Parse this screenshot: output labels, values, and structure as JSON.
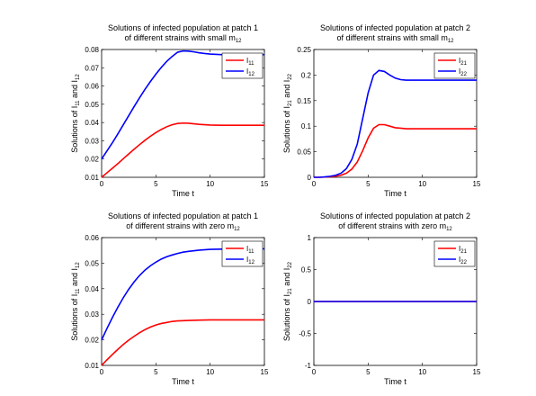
{
  "chart_data": [
    {
      "type": "line",
      "title": [
        {
          "parts": [
            {
              "t": "Solutions of infected population at patch 1"
            }
          ]
        },
        {
          "parts": [
            {
              "t": "of different strains with small m"
            },
            {
              "t": "12",
              "sub": true
            }
          ]
        }
      ],
      "xlabel": "Time t",
      "ylabel": [
        {
          "t": "Solutions of I"
        },
        {
          "t": "11",
          "sub": true
        },
        {
          "t": " and I"
        },
        {
          "t": "12",
          "sub": true
        }
      ],
      "xlim": [
        0,
        15
      ],
      "ylim": [
        0.01,
        0.08
      ],
      "xticks": [
        "0",
        "5",
        "10",
        "15"
      ],
      "yticks": [
        "0.01",
        "0.02",
        "0.03",
        "0.04",
        "0.05",
        "0.06",
        "0.07",
        "0.08"
      ],
      "legend": "top-right",
      "series": [
        {
          "name": [
            {
              "t": "I"
            },
            {
              "t": "11",
              "sub": true
            }
          ],
          "color": "#ff0000",
          "x": [
            0,
            0.5,
            1,
            1.5,
            2,
            2.5,
            3,
            3.5,
            4,
            4.5,
            5,
            5.5,
            6,
            6.5,
            7,
            7.5,
            8,
            8.5,
            9,
            9.5,
            10,
            11,
            12,
            13,
            14,
            15
          ],
          "y": [
            0.01,
            0.0125,
            0.015,
            0.0175,
            0.0202,
            0.0228,
            0.0254,
            0.0279,
            0.0303,
            0.0325,
            0.0345,
            0.0362,
            0.0377,
            0.0388,
            0.0395,
            0.0397,
            0.0396,
            0.0393,
            0.039,
            0.0388,
            0.0386,
            0.0385,
            0.0385,
            0.0385,
            0.0385,
            0.0385
          ]
        },
        {
          "name": [
            {
              "t": "I"
            },
            {
              "t": "12",
              "sub": true
            }
          ],
          "color": "#0000ff",
          "x": [
            0,
            0.5,
            1,
            1.5,
            2,
            2.5,
            3,
            3.5,
            4,
            4.5,
            5,
            5.5,
            6,
            6.5,
            7,
            7.5,
            8,
            8.5,
            9,
            9.5,
            10,
            11,
            12,
            13,
            14,
            15
          ],
          "y": [
            0.02,
            0.0245,
            0.029,
            0.0338,
            0.0388,
            0.0438,
            0.0488,
            0.0536,
            0.0582,
            0.0625,
            0.0665,
            0.0702,
            0.0735,
            0.0762,
            0.0785,
            0.0792,
            0.0791,
            0.0787,
            0.0782,
            0.0778,
            0.0775,
            0.0772,
            0.0772,
            0.0772,
            0.0772,
            0.0772
          ]
        }
      ]
    },
    {
      "type": "line",
      "title": [
        {
          "parts": [
            {
              "t": "Solutions of infected population at patch 2"
            }
          ]
        },
        {
          "parts": [
            {
              "t": "of different strains with small m"
            },
            {
              "t": "12",
              "sub": true
            }
          ]
        }
      ],
      "xlabel": "Time t",
      "ylabel": [
        {
          "t": "Solutions of I"
        },
        {
          "t": "21",
          "sub": true
        },
        {
          "t": " and I"
        },
        {
          "t": "22",
          "sub": true
        }
      ],
      "xlim": [
        0,
        15
      ],
      "ylim": [
        0,
        0.25
      ],
      "xticks": [
        "0",
        "5",
        "10",
        "15"
      ],
      "yticks": [
        "0",
        "0.05",
        "0.1",
        "0.15",
        "0.2",
        "0.25"
      ],
      "legend": "top-right",
      "series": [
        {
          "name": [
            {
              "t": "I"
            },
            {
              "t": "21",
              "sub": true
            }
          ],
          "color": "#ff0000",
          "x": [
            0,
            0.5,
            1,
            1.5,
            2,
            2.5,
            3,
            3.5,
            4,
            4.5,
            5,
            5.5,
            6,
            6.5,
            7,
            7.5,
            8,
            8.5,
            9,
            10,
            11,
            12,
            13,
            14,
            15
          ],
          "y": [
            0,
            0,
            0.0005,
            0.001,
            0.002,
            0.004,
            0.008,
            0.016,
            0.03,
            0.052,
            0.077,
            0.096,
            0.103,
            0.103,
            0.1,
            0.097,
            0.096,
            0.095,
            0.095,
            0.095,
            0.095,
            0.095,
            0.095,
            0.095,
            0.095
          ]
        },
        {
          "name": [
            {
              "t": "I"
            },
            {
              "t": "22",
              "sub": true
            }
          ],
          "color": "#0000ff",
          "x": [
            0,
            0.5,
            1,
            1.5,
            2,
            2.5,
            3,
            3.5,
            4,
            4.5,
            5,
            5.5,
            6,
            6.5,
            7,
            7.5,
            8,
            8.5,
            9,
            10,
            11,
            12,
            13,
            14,
            15
          ],
          "y": [
            0,
            0,
            0.0008,
            0.002,
            0.004,
            0.008,
            0.017,
            0.035,
            0.065,
            0.115,
            0.165,
            0.2,
            0.209,
            0.207,
            0.2,
            0.194,
            0.191,
            0.19,
            0.19,
            0.19,
            0.19,
            0.19,
            0.19,
            0.19,
            0.19
          ]
        }
      ]
    },
    {
      "type": "line",
      "title": [
        {
          "parts": [
            {
              "t": "Solutions of infected population at patch 1"
            }
          ]
        },
        {
          "parts": [
            {
              "t": "of different strains with zero m"
            },
            {
              "t": "12",
              "sub": true
            }
          ]
        }
      ],
      "xlabel": "Time t",
      "ylabel": [
        {
          "t": "Solutions of I"
        },
        {
          "t": "11",
          "sub": true
        },
        {
          "t": " and I"
        },
        {
          "t": "12",
          "sub": true
        }
      ],
      "xlim": [
        0,
        15
      ],
      "ylim": [
        0.01,
        0.06
      ],
      "xticks": [
        "0",
        "5",
        "10",
        "15"
      ],
      "yticks": [
        "0.01",
        "0.02",
        "0.03",
        "0.04",
        "0.05",
        "0.06"
      ],
      "legend": "top-right",
      "series": [
        {
          "name": [
            {
              "t": "I"
            },
            {
              "t": "11",
              "sub": true
            }
          ],
          "color": "#ff0000",
          "x": [
            0,
            0.5,
            1,
            1.5,
            2,
            2.5,
            3,
            3.5,
            4,
            4.5,
            5,
            5.5,
            6,
            6.5,
            7,
            7.5,
            8,
            9,
            10,
            11,
            12,
            13,
            14,
            15
          ],
          "y": [
            0.01,
            0.0122,
            0.0143,
            0.0163,
            0.0182,
            0.0199,
            0.0214,
            0.0228,
            0.024,
            0.025,
            0.0258,
            0.0264,
            0.0268,
            0.0272,
            0.0274,
            0.0275,
            0.0276,
            0.0277,
            0.0278,
            0.0278,
            0.0278,
            0.0278,
            0.0278,
            0.0278
          ]
        },
        {
          "name": [
            {
              "t": "I"
            },
            {
              "t": "12",
              "sub": true
            }
          ],
          "color": "#0000ff",
          "x": [
            0,
            0.5,
            1,
            1.5,
            2,
            2.5,
            3,
            3.5,
            4,
            4.5,
            5,
            5.5,
            6,
            6.5,
            7,
            7.5,
            8,
            9,
            10,
            11,
            12,
            13,
            14,
            15
          ],
          "y": [
            0.02,
            0.0245,
            0.0288,
            0.0328,
            0.0365,
            0.0398,
            0.0427,
            0.0452,
            0.0473,
            0.049,
            0.0504,
            0.0516,
            0.0525,
            0.0532,
            0.0538,
            0.0543,
            0.0546,
            0.0551,
            0.0554,
            0.0555,
            0.0556,
            0.0556,
            0.0556,
            0.0556
          ]
        }
      ]
    },
    {
      "type": "line",
      "title": [
        {
          "parts": [
            {
              "t": "Solutions of infected population at patch 2"
            }
          ]
        },
        {
          "parts": [
            {
              "t": "of different strains with zero m"
            },
            {
              "t": "12",
              "sub": true
            }
          ]
        }
      ],
      "xlabel": "Time t",
      "ylabel": [
        {
          "t": "Solutions of I"
        },
        {
          "t": "21",
          "sub": true
        },
        {
          "t": " and I"
        },
        {
          "t": "22",
          "sub": true
        }
      ],
      "xlim": [
        0,
        15
      ],
      "ylim": [
        -1,
        1
      ],
      "xticks": [
        "0",
        "5",
        "10",
        "15"
      ],
      "yticks": [
        "-1",
        "-0.5",
        "0",
        "0.5",
        "1"
      ],
      "legend": "top-right",
      "series": [
        {
          "name": [
            {
              "t": "I"
            },
            {
              "t": "21",
              "sub": true
            }
          ],
          "color": "#ff0000",
          "x": [
            0,
            15
          ],
          "y": [
            0,
            0
          ]
        },
        {
          "name": [
            {
              "t": "I"
            },
            {
              "t": "22",
              "sub": true
            }
          ],
          "color": "#0000ff",
          "x": [
            0,
            15
          ],
          "y": [
            0,
            0
          ]
        }
      ]
    }
  ]
}
